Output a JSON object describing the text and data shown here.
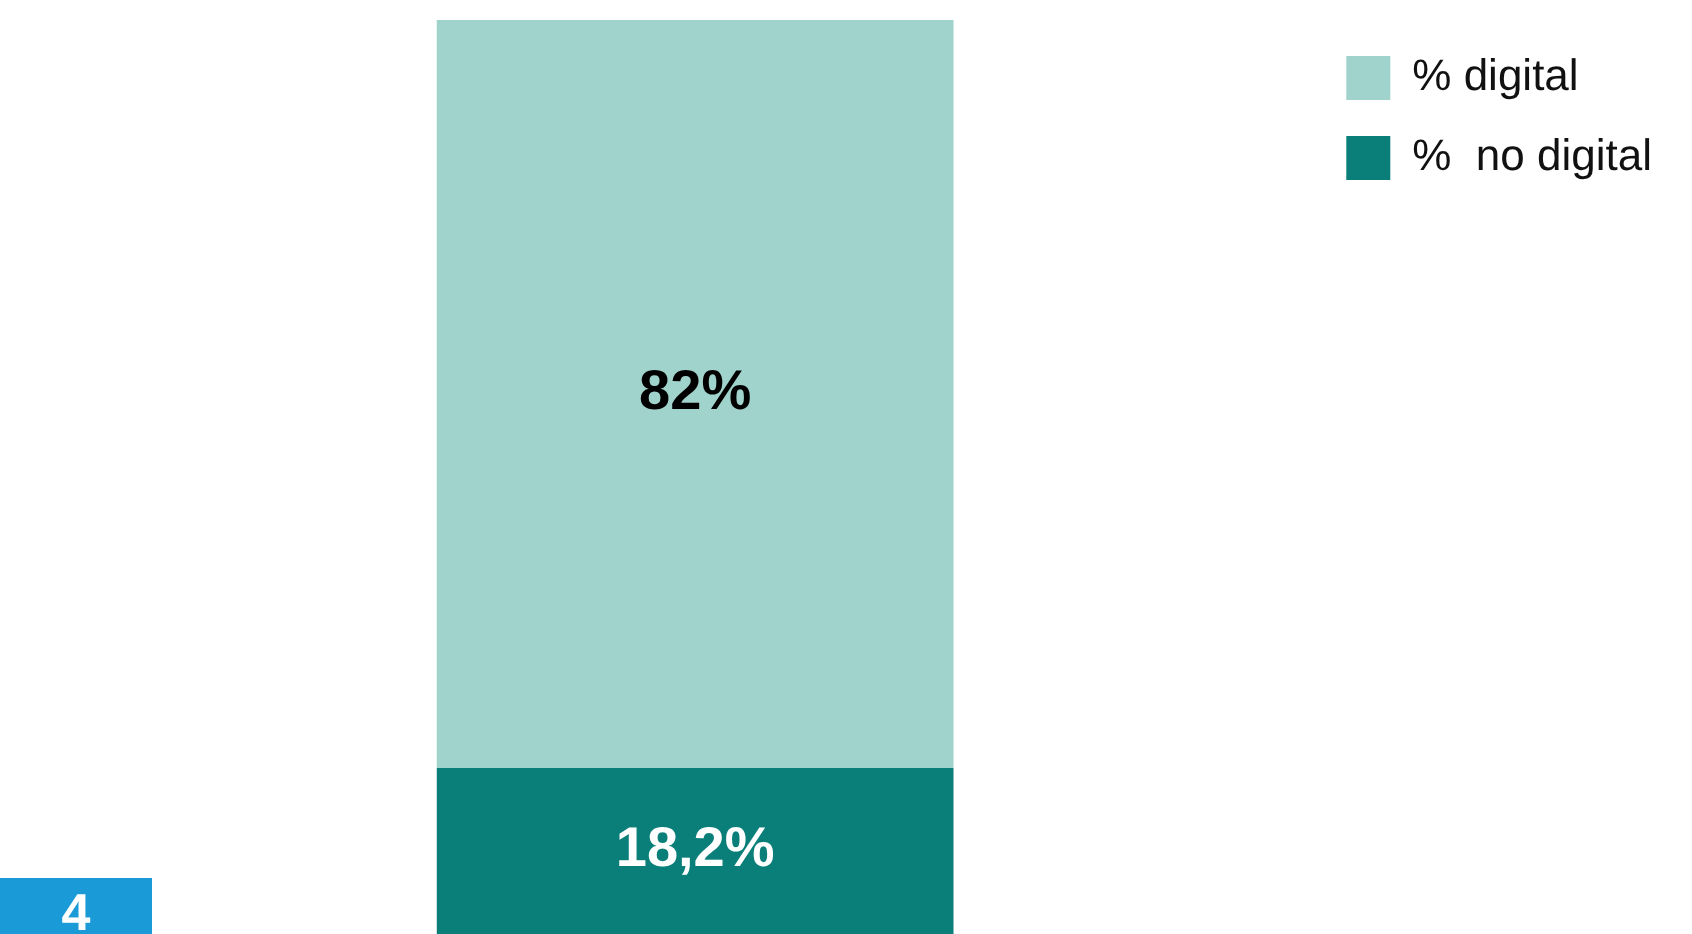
{
  "chart_data": {
    "type": "bar",
    "stacked": true,
    "categories": [
      null
    ],
    "series": [
      {
        "name": "%  no digital",
        "color": "#0a7f7a",
        "values": [
          18.2
        ],
        "value_labels": [
          "18,2%"
        ]
      },
      {
        "name": "% digital",
        "color": "#9fd3cb",
        "values": [
          82
        ],
        "value_labels": [
          "82%"
        ]
      }
    ],
    "legend": "right",
    "tick_labels": false,
    "annotations": [
      "4"
    ]
  }
}
